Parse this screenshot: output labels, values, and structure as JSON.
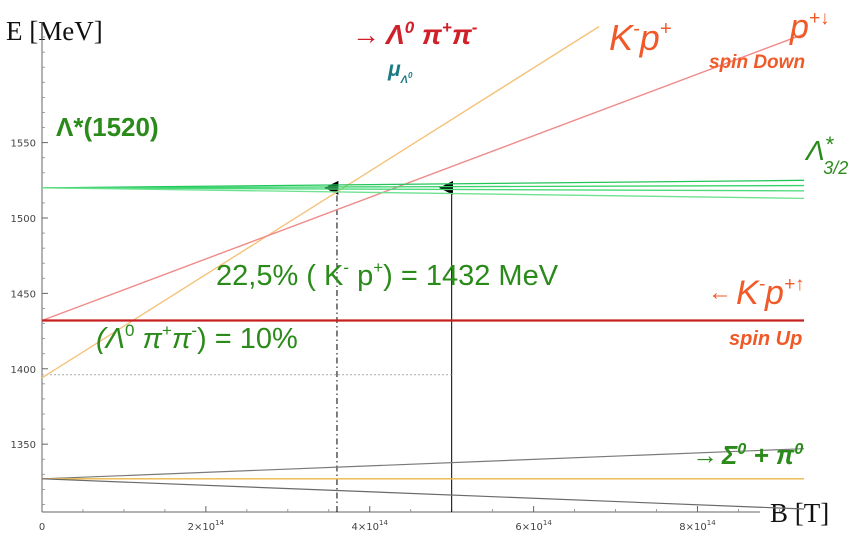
{
  "chart_data": {
    "type": "line",
    "xlabel": "B [T]",
    "ylabel": "E [MeV]",
    "xlim": [
      0,
      930000000000000.0
    ],
    "ylim": [
      1305,
      1630
    ],
    "x_ticks": [
      {
        "value": 0,
        "label": "0"
      },
      {
        "value": 200000000000000.0,
        "label": "2×10"
      },
      {
        "value": 400000000000000.0,
        "label": "4×10"
      },
      {
        "value": 600000000000000.0,
        "label": "6×10"
      },
      {
        "value": 800000000000000.0,
        "label": "8×10"
      }
    ],
    "x_tick_exponent": "14",
    "y_ticks": [
      1350,
      1400,
      1450,
      1500,
      1550
    ],
    "series": [
      {
        "name": "Λ⁰π⁺π⁻",
        "color": "#f5c27a",
        "width": 1.4,
        "points": [
          [
            0,
            1394
          ],
          [
            680000000000000.0,
            1627
          ]
        ]
      },
      {
        "name": "K⁻p⁺ spin Down",
        "color": "#f08a8a",
        "width": 1.4,
        "points": [
          [
            0,
            1432
          ],
          [
            930000000000000.0,
            1622
          ]
        ]
      },
      {
        "name": "K⁻p⁺ spin Up",
        "color": "#c82020",
        "width": 2.2,
        "points": [
          [
            0,
            1432
          ],
          [
            930000000000000.0,
            1432
          ]
        ]
      },
      {
        "name": "Λ*(1520) a",
        "color": "#22c55a",
        "width": 1.3,
        "points": [
          [
            0,
            1520
          ],
          [
            930000000000000.0,
            1525
          ]
        ]
      },
      {
        "name": "Λ*(1520) b",
        "color": "#36d36a",
        "width": 1.3,
        "points": [
          [
            0,
            1520
          ],
          [
            930000000000000.0,
            1521.5
          ]
        ]
      },
      {
        "name": "Λ*(1520) c",
        "color": "#4ada7a",
        "width": 1.3,
        "points": [
          [
            0,
            1520
          ],
          [
            930000000000000.0,
            1518
          ]
        ]
      },
      {
        "name": "Λ*(1520) d",
        "color": "#6ee290",
        "width": 1.3,
        "points": [
          [
            0,
            1520
          ],
          [
            930000000000000.0,
            1513
          ]
        ]
      },
      {
        "name": "Σ⁰π⁰ a",
        "color": "#7a7a7a",
        "width": 1.2,
        "points": [
          [
            0,
            1327
          ],
          [
            930000000000000.0,
            1347
          ]
        ]
      },
      {
        "name": "Σ⁰π⁰ b",
        "color": "#e8b84a",
        "width": 1.4,
        "points": [
          [
            0,
            1327
          ],
          [
            930000000000000.0,
            1327
          ]
        ]
      },
      {
        "name": "Σ⁰π⁰ c",
        "color": "#6a6a6a",
        "width": 1.2,
        "points": [
          [
            0,
            1327
          ],
          [
            930000000000000.0,
            1307
          ]
        ]
      }
    ],
    "guides": [
      {
        "kind": "dashdot",
        "color": "#000000",
        "points": [
          [
            360000000000000.0,
            1305
          ],
          [
            360000000000000.0,
            1520
          ]
        ]
      },
      {
        "kind": "arrow",
        "color": "#000000",
        "points": [
          [
            500000000000000.0,
            1305
          ],
          [
            500000000000000.0,
            1520
          ]
        ]
      },
      {
        "kind": "dotted",
        "color": "#aaaaaa",
        "points": [
          [
            0,
            1396
          ],
          [
            500000000000000.0,
            1396
          ]
        ]
      }
    ],
    "annotations": {
      "lambda_decay": {
        "arrow": "→",
        "sym": "Λ",
        "sup": "0",
        "rest": " π",
        "rest_sup": "+",
        "rest2": "π",
        "rest2_sup": "-"
      },
      "mu_label": {
        "sym": "μ",
        "sub": "Λ",
        "subsup": "0"
      },
      "kp_down": {
        "a": "K",
        "a_sup": "-",
        "b": "p",
        "b_sup": "+"
      },
      "p_spin_down": {
        "text": "p",
        "sup": "+↓"
      },
      "spin_down": "spin Down",
      "lambda_star": "Λ*(1520)",
      "lambda_32": {
        "sym": "Λ",
        "sup": "*",
        "sub": "3/2"
      },
      "percent_kp": {
        "a": "22,5%  ( K",
        "a_sup": "-",
        "b": " p",
        "b_sup": "+",
        "c": ") = 1432 MeV"
      },
      "kp_up": {
        "arrow": "←",
        "a": "K",
        "a_sup": "-",
        "b": "p",
        "b_sup": "+↑"
      },
      "spin_up": "spin Up",
      "percent_lambda": {
        "a": "(Λ",
        "a_sup": "0",
        "b": " π",
        "b_sup": "+",
        "c": "π",
        "c_sup": "-",
        "d": ") = 10%"
      },
      "sigma_decay": {
        "arrow": "→",
        "a": "Σ",
        "a_sup": "0",
        "b": " + π",
        "b_sup": "0"
      }
    }
  }
}
